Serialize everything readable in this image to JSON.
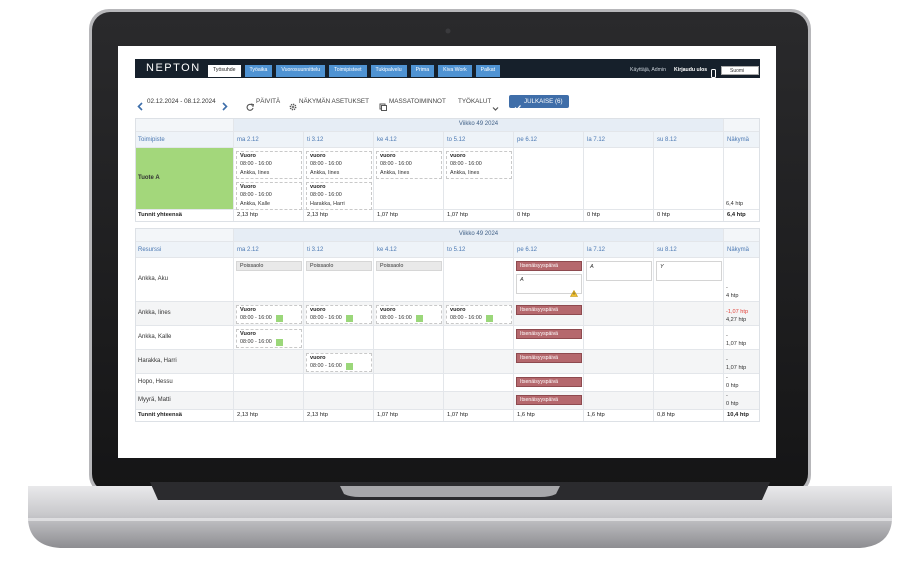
{
  "header": {
    "logo": "NEPTON",
    "tabs": [
      "Työsuhde",
      "Työaika",
      "Vuorosuunnittelu",
      "Toimipisteet",
      "Tukipalvelu",
      "Prima",
      "Kiva Work",
      "Palkat"
    ],
    "active_tab": 0,
    "user": "Käyttäjä, Admin",
    "logout": "Kirjaudu ulos",
    "language": "Suomi"
  },
  "toolbar": {
    "date_range": "02.12.2024 - 08.12.2024",
    "refresh": "PÄIVITÄ",
    "view_settings": "NÄKYMÄN ASETUKSET",
    "mass_actions": "MASSATOIMINNOT",
    "tools": "TYÖKALUT",
    "publish": "JULKAISE (6)"
  },
  "location_table": {
    "week": "Viikko 49 2024",
    "columns": [
      "Toimipiste",
      "ma 2.12",
      "ti 3.12",
      "ke 4.12",
      "to 5.12",
      "pe 6.12",
      "la 7.12",
      "su 8.12",
      "Näkymä"
    ],
    "rows": [
      {
        "name": "Tuote A",
        "highlight": "#a3d77b",
        "cells": [
          [
            {
              "shift": "Vuoro",
              "time": "08:00 - 16:00",
              "person": "Ankka, Iines"
            },
            {
              "shift": "Vuoro",
              "time": "08:00 - 16:00",
              "person": "Ankka, Kalle"
            }
          ],
          [
            {
              "shift": "vuoro",
              "time": "08:00 - 16:00",
              "person": "Ankka, Iines"
            },
            {
              "shift": "vuoro",
              "time": "08:00 - 16:00",
              "person": "Harakka, Harri"
            }
          ],
          [
            {
              "shift": "vuoro",
              "time": "08:00 - 16:00",
              "person": "Ankka, Iines"
            }
          ],
          [
            {
              "shift": "vuoro",
              "time": "08:00 - 16:00",
              "person": "Ankka, Iines"
            }
          ],
          [],
          [],
          []
        ],
        "summary": [
          "6,4 htp"
        ]
      }
    ],
    "totals": [
      "Tunnit yhteensä",
      "2,13 htp",
      "2,13 htp",
      "1,07 htp",
      "1,07 htp",
      "0 htp",
      "0 htp",
      "0 htp",
      "6,4 htp"
    ]
  },
  "resource_table": {
    "week": "Viikko 49 2024",
    "columns": [
      "Resurssi",
      "ma 2.12",
      "ti 3.12",
      "ke 4.12",
      "to 5.12",
      "pe 6.12",
      "la 7.12",
      "su 8.12",
      "Näkymä"
    ],
    "rows": [
      {
        "name": "Ankka, Aku",
        "cells": [
          [
            {
              "absence": "Poissaolo"
            }
          ],
          [
            {
              "absence": "Poissaolo"
            }
          ],
          [
            {
              "absence": "Poissaolo"
            }
          ],
          [],
          [
            {
              "holiday": "Itsenäisyyspäivä"
            },
            {
              "note": "A",
              "warning": true
            }
          ],
          [
            {
              "note": "A"
            }
          ],
          [
            {
              "note": "Y"
            }
          ]
        ],
        "summary": [
          "-",
          "4 htp"
        ]
      },
      {
        "name": "Ankka, Iines",
        "cells": [
          [
            {
              "shift": "Vuoro",
              "time": "08:00 - 16:00",
              "status_color": "#9bd77a"
            }
          ],
          [
            {
              "shift": "vuoro",
              "time": "08:00 - 16:00",
              "status_color": "#9bd77a"
            }
          ],
          [
            {
              "shift": "vuoro",
              "time": "08:00 - 16:00",
              "status_color": "#9bd77a"
            }
          ],
          [
            {
              "shift": "vuoro",
              "time": "08:00 - 16:00",
              "status_color": "#9bd77a"
            }
          ],
          [
            {
              "holiday": "Itsenäisyyspäivä"
            }
          ],
          [],
          []
        ],
        "summary": [
          "-1,07 htp",
          "4,27 htp"
        ],
        "summary_color": "#e2433b"
      },
      {
        "name": "Ankka, Kalle",
        "cells": [
          [
            {
              "shift": "Vuoro",
              "time": "08:00 - 16:00",
              "status_color": "#9bd77a"
            }
          ],
          [],
          [],
          [],
          [
            {
              "holiday": "Itsenäisyyspäivä"
            }
          ],
          [],
          []
        ],
        "summary": [
          "-",
          "1,07 htp"
        ]
      },
      {
        "name": "Harakka, Harri",
        "cells": [
          [],
          [
            {
              "shift": "vuoro",
              "time": "08:00 - 16:00",
              "status_color": "#9bd77a"
            }
          ],
          [],
          [],
          [
            {
              "holiday": "Itsenäisyyspäivä"
            }
          ],
          [],
          []
        ],
        "summary": [
          "-",
          "1,07 htp"
        ]
      },
      {
        "name": "Hopo, Hessu",
        "cells": [
          [],
          [],
          [],
          [],
          [
            {
              "holiday": "Itsenäisyyspäivä"
            }
          ],
          [],
          []
        ],
        "summary": [
          "-",
          "0 htp"
        ]
      },
      {
        "name": "Myyrä, Matti",
        "cells": [
          [],
          [],
          [],
          [],
          [
            {
              "holiday": "Itsenäisyyspäivä"
            }
          ],
          [],
          []
        ],
        "summary": [
          "-",
          "0 htp"
        ]
      }
    ],
    "totals": [
      "Tunnit yhteensä",
      "2,13 htp",
      "2,13 htp",
      "1,07 htp",
      "1,07 htp",
      "1,6 htp",
      "1,6 htp",
      "0,8 htp",
      "10,4 htp"
    ]
  }
}
